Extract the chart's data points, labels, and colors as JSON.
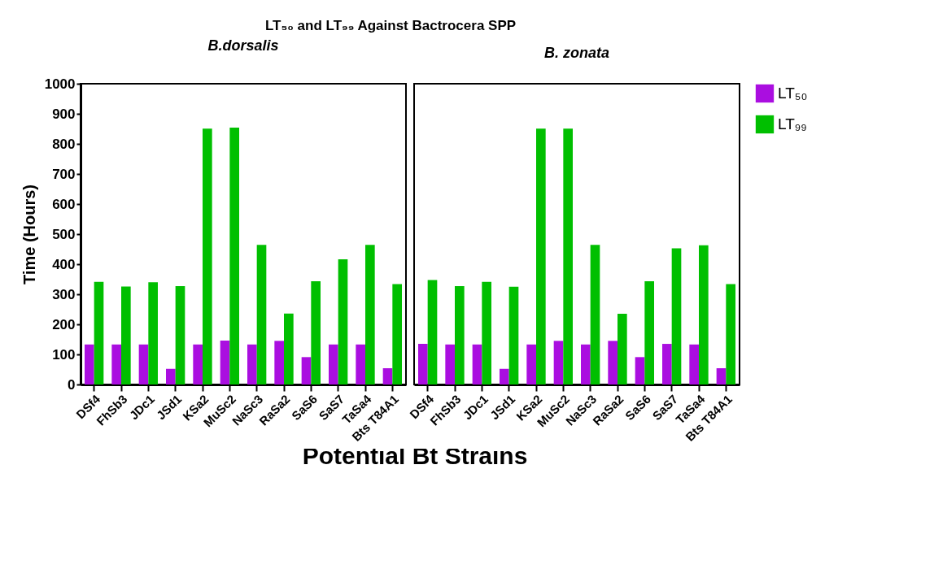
{
  "chart_data": [
    {
      "type": "bar",
      "title": "LT₅₀ and LT₉₉ Against Bactrocera SPP",
      "subtitle": "B.dorsalis",
      "xlabel": "Potential Bt Strains",
      "ylabel": "Time (Hours)",
      "categories": [
        "DSf4",
        "FhSb3",
        "JDc1",
        "JSd1",
        "KSa2",
        "MuSc2",
        "NaSc3",
        "RaSa2",
        "SaS6",
        "SaS7",
        "TaSa4",
        "Bts T84A1"
      ],
      "series": [
        {
          "name": "LT₅₀",
          "color": "#aa0ee0",
          "values": [
            133,
            133,
            133,
            52,
            133,
            146,
            133,
            145,
            91,
            133,
            133,
            54
          ]
        },
        {
          "name": "LT₉₉",
          "color": "#00bf00",
          "values": [
            341,
            326,
            340,
            327,
            851,
            854,
            464,
            236,
            343,
            416,
            464,
            334
          ]
        }
      ],
      "ylim": [
        0,
        1000
      ],
      "yticks": [
        0,
        100,
        200,
        300,
        400,
        500,
        600,
        700,
        800,
        900,
        1000
      ],
      "grid": false,
      "legend": "right"
    },
    {
      "type": "bar",
      "subtitle": "B. zonata",
      "categories": [
        "DSf4",
        "FhSb3",
        "JDc1",
        "JSd1",
        "KSa2",
        "MuSc2",
        "NaSc3",
        "RaSa2",
        "SaS6",
        "SaS7",
        "TaSa4",
        "Bts T84A1"
      ],
      "series": [
        {
          "name": "LT₅₀",
          "color": "#aa0ee0",
          "values": [
            135,
            133,
            133,
            52,
            133,
            145,
            133,
            145,
            91,
            135,
            133,
            54
          ]
        },
        {
          "name": "LT₉₉",
          "color": "#00bf00",
          "values": [
            347,
            327,
            341,
            325,
            851,
            851,
            464,
            235,
            343,
            453,
            463,
            334
          ]
        }
      ],
      "ylim": [
        0,
        1000
      ],
      "yticks": [
        0,
        100,
        200,
        300,
        400,
        500,
        600,
        700,
        800,
        900,
        1000
      ],
      "grid": false,
      "legend": "right",
      "tick_labels": "x"
    }
  ]
}
